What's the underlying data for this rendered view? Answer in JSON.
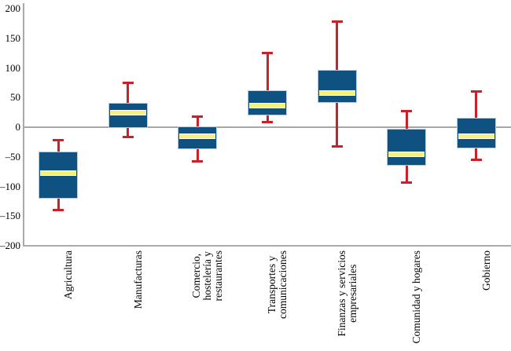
{
  "chart_data": {
    "type": "boxplot",
    "title": "",
    "xlabel": "",
    "ylabel": "",
    "y_axis": {
      "min": -200,
      "max": 200,
      "tick_interval": 50,
      "ticks": [
        {
          "value": 200,
          "label": "200"
        },
        {
          "value": 150,
          "label": "150"
        },
        {
          "value": 100,
          "label": "100"
        },
        {
          "value": 50,
          "label": "50"
        },
        {
          "value": 0,
          "label": "0"
        },
        {
          "value": -50,
          "label": "–50"
        },
        {
          "value": -100,
          "label": "–100"
        },
        {
          "value": -150,
          "label": "–150"
        },
        {
          "value": -200,
          "label": "–200"
        }
      ]
    },
    "categories": [
      {
        "label": "Agricultura",
        "lines": [
          "Agricultura"
        ]
      },
      {
        "label": "Manufacturas",
        "lines": [
          "Manufacturas"
        ]
      },
      {
        "label": "Comercio, hostelería y restaurantes",
        "lines": [
          "Comercio,",
          "hostelería y",
          "restaurantes"
        ]
      },
      {
        "label": "Transportes y comunicaciones",
        "lines": [
          "Transportes y",
          "comunicaciones"
        ]
      },
      {
        "label": "Finanzas y servicios empresariales",
        "lines": [
          "Finanzas y servicios",
          "empresariales"
        ]
      },
      {
        "label": "Comunidad y hogares",
        "lines": [
          "Comunidad y hogares"
        ]
      },
      {
        "label": "Gobierno",
        "lines": [
          "Gobierno"
        ]
      }
    ],
    "boxes": [
      {
        "category": "Agricultura",
        "whisker_low": -140,
        "q1": -120,
        "median": -77,
        "q3": -41,
        "whisker_high": -22
      },
      {
        "category": "Manufacturas",
        "whisker_low": -17,
        "q1": -2,
        "median": 25,
        "q3": 41,
        "whisker_high": 75
      },
      {
        "category": "Comercio, hostelería y restaurantes",
        "whisker_low": -57,
        "q1": -37,
        "median": -15,
        "q3": 1,
        "whisker_high": 18
      },
      {
        "category": "Transportes y comunicaciones",
        "whisker_low": 9,
        "q1": 20,
        "median": 36,
        "q3": 62,
        "whisker_high": 125
      },
      {
        "category": "Finanzas y servicios empresariales",
        "whisker_low": -33,
        "q1": 41,
        "median": 57,
        "q3": 97,
        "whisker_high": 178
      },
      {
        "category": "Comunidad y hogares",
        "whisker_low": -94,
        "q1": -65,
        "median": -46,
        "q3": -3,
        "whisker_high": 27
      },
      {
        "category": "Gobierno",
        "whisker_low": -55,
        "q1": -36,
        "median": -15,
        "q3": 16,
        "whisker_high": 60
      }
    ],
    "colors": {
      "box_fill": "#0f5180",
      "box_border": "#b5cbdc",
      "median_fill": "#f6f07d",
      "median_edge": "#ffffff",
      "whisker": "#cb2027",
      "zero_line": "#a6a6a6",
      "axis_line": "#aaaaaa",
      "text": "#000000",
      "background": "#ffffff"
    },
    "layout": {
      "grid": false,
      "legend": false,
      "zero_line": true,
      "x_labels_rotated_90": true
    }
  }
}
